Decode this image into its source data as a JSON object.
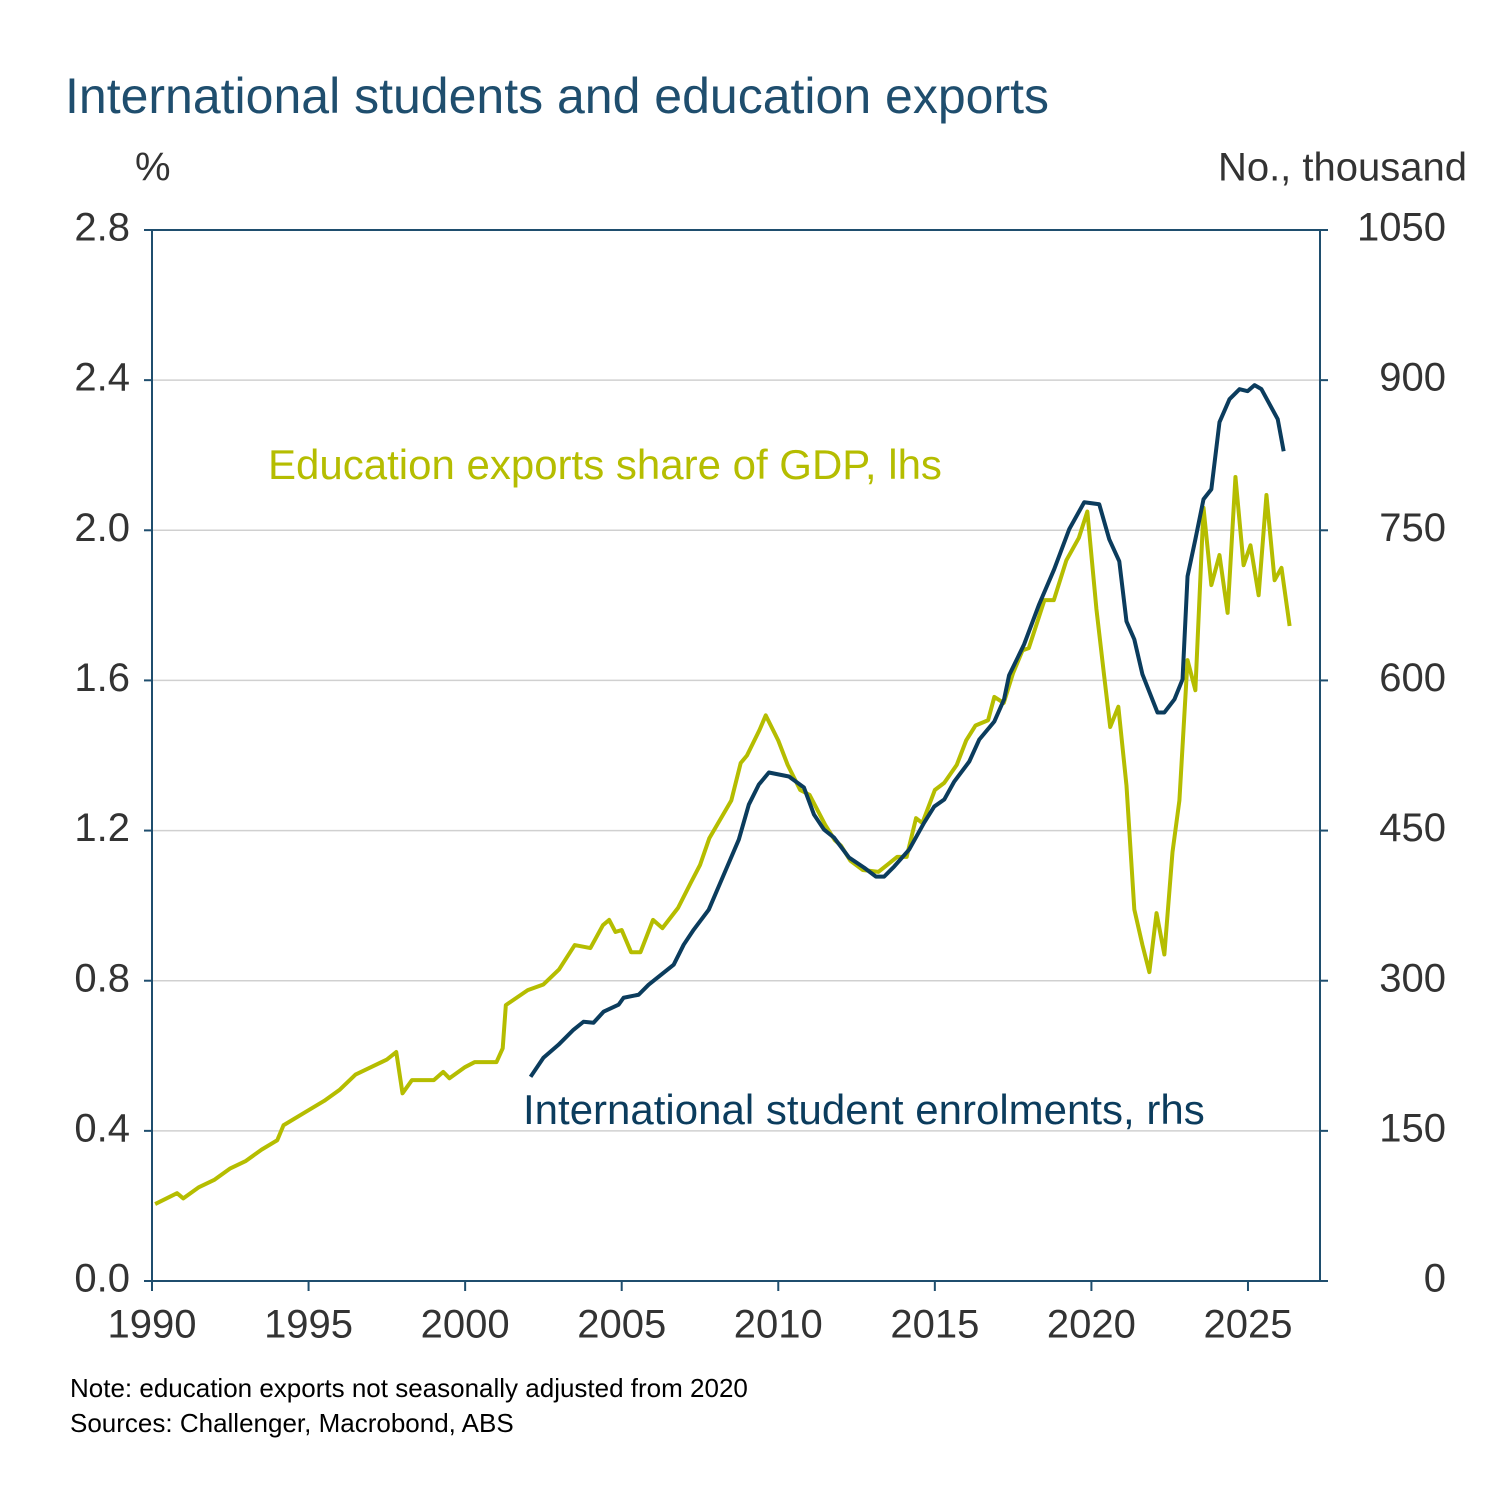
{
  "chart_data": {
    "type": "line",
    "title": "International students and education exports",
    "y_label": "%",
    "y2_label": "No., thousand",
    "note": "Note: education exports not seasonally adjusted from 2020",
    "source": "Sources: Challenger, Macrobond, ABS",
    "xlim": [
      1990,
      2027.3
    ],
    "xticks": [
      1990,
      1995,
      2000,
      2005,
      2010,
      2015,
      2020,
      2025
    ],
    "ylim": [
      0,
      2.8
    ],
    "yticks": [
      {
        "value": 0,
        "label": "0.0"
      },
      0.4,
      0.8,
      1.2,
      1.6,
      {
        "value": 2,
        "label": "2.0"
      },
      2.4,
      2.8
    ],
    "y2lim": [
      0,
      1050
    ],
    "y2ticks": [
      0,
      150,
      300,
      450,
      600,
      750,
      900,
      1050
    ],
    "grid": true,
    "series": [
      {
        "name": "Education exports share of GDP, lhs",
        "color": "#b5bd00",
        "x": [
          1990.1,
          1990.8,
          1991.0,
          1991.5,
          1992.0,
          1992.5,
          1993.0,
          1993.5,
          1994.0,
          1994.2,
          1995.0,
          1995.5,
          1996.0,
          1996.5,
          1997.0,
          1997.5,
          1997.8,
          1998.0,
          1998.3,
          1999.0,
          1999.3,
          1999.5,
          2000.0,
          2000.3,
          2001.0,
          2001.2,
          2001.3,
          2002.0,
          2002.5,
          2003.0,
          2003.5,
          2004.0,
          2004.4,
          2004.6,
          2004.8,
          2005.0,
          2005.3,
          2005.6,
          2006.0,
          2006.3,
          2006.8,
          2007.2,
          2007.5,
          2007.8,
          2008.5,
          2008.8,
          2009.0,
          2009.4,
          2009.6,
          2010.0,
          2010.3,
          2010.7,
          2011.0,
          2011.5,
          2011.8,
          2012.0,
          2012.3,
          2012.7,
          2013.2,
          2013.8,
          2014.1,
          2014.4,
          2014.6,
          2015.0,
          2015.3,
          2015.7,
          2016.0,
          2016.3,
          2016.7,
          2016.9,
          2017.2,
          2017.5,
          2017.8,
          2018.0,
          2018.5,
          2018.8,
          2019.2,
          2019.6,
          2019.87,
          2020.16,
          2020.41,
          2020.6,
          2020.86,
          2021.12,
          2021.37,
          2021.63,
          2021.85,
          2022.08,
          2022.33,
          2022.59,
          2022.81,
          2023.07,
          2023.32,
          2023.58,
          2023.83,
          2024.09,
          2024.35,
          2024.6,
          2024.86,
          2025.08,
          2025.34,
          2025.59,
          2025.85,
          2026.07,
          2026.33
        ],
        "values": [
          0.205,
          0.234,
          0.22,
          0.25,
          0.27,
          0.3,
          0.32,
          0.35,
          0.375,
          0.415,
          0.455,
          0.48,
          0.51,
          0.55,
          0.57,
          0.59,
          0.61,
          0.5,
          0.535,
          0.535,
          0.557,
          0.54,
          0.57,
          0.583,
          0.583,
          0.62,
          0.735,
          0.775,
          0.79,
          0.83,
          0.895,
          0.887,
          0.948,
          0.962,
          0.93,
          0.935,
          0.876,
          0.876,
          0.962,
          0.94,
          0.994,
          1.06,
          1.108,
          1.18,
          1.28,
          1.38,
          1.4,
          1.468,
          1.507,
          1.44,
          1.375,
          1.308,
          1.295,
          1.215,
          1.175,
          1.16,
          1.12,
          1.095,
          1.09,
          1.13,
          1.13,
          1.233,
          1.22,
          1.308,
          1.327,
          1.375,
          1.44,
          1.48,
          1.494,
          1.556,
          1.54,
          1.62,
          1.68,
          1.686,
          1.814,
          1.814,
          1.92,
          1.98,
          2.05,
          1.79,
          1.61,
          1.476,
          1.53,
          1.32,
          0.99,
          0.895,
          0.823,
          0.98,
          0.87,
          1.143,
          1.28,
          1.654,
          1.574,
          2.06,
          1.854,
          1.934,
          1.78,
          2.142,
          1.907,
          1.96,
          1.827,
          2.094,
          1.867,
          1.9,
          1.745
        ]
      },
      {
        "name": "International student enrolments, rhs",
        "color": "#0b3c5d",
        "axis": "y2",
        "x": [
          2002.09,
          2002.5,
          2002.98,
          2003.46,
          2003.78,
          2004.1,
          2004.42,
          2004.9,
          2005.06,
          2005.54,
          2005.86,
          2006.18,
          2006.66,
          2006.98,
          2007.3,
          2007.78,
          2008.26,
          2008.74,
          2009.06,
          2009.38,
          2009.7,
          2010.02,
          2010.34,
          2010.82,
          2011.14,
          2011.46,
          2011.78,
          2012.26,
          2012.74,
          2013.12,
          2013.38,
          2013.7,
          2014.18,
          2014.66,
          2014.98,
          2015.3,
          2015.62,
          2016.1,
          2016.42,
          2016.9,
          2017.21,
          2017.37,
          2017.85,
          2018.33,
          2018.81,
          2019.29,
          2019.77,
          2020.25,
          2020.57,
          2020.89,
          2021.12,
          2021.37,
          2021.63,
          2022.11,
          2022.33,
          2022.65,
          2022.91,
          2023.07,
          2023.32,
          2023.58,
          2023.83,
          2024.09,
          2024.41,
          2024.73,
          2024.99,
          2025.21,
          2025.43,
          2025.69,
          2025.95,
          2026.14
        ],
        "values": [
          204,
          223,
          236,
          251,
          259,
          258,
          269,
          276,
          283,
          286,
          296,
          304,
          316,
          336,
          351,
          371,
          406,
          441,
          476,
          496,
          508,
          506,
          504,
          493,
          466,
          451,
          443,
          423,
          413,
          404,
          404,
          414,
          431,
          458,
          474,
          481,
          499,
          519,
          541,
          559,
          581,
          605,
          636,
          676,
          711,
          751,
          778,
          776,
          741,
          719,
          659,
          641,
          606,
          568,
          568,
          581,
          601,
          704,
          741,
          781,
          791,
          858,
          881,
          891,
          889,
          895,
          891,
          876,
          861,
          829
        ]
      }
    ]
  }
}
